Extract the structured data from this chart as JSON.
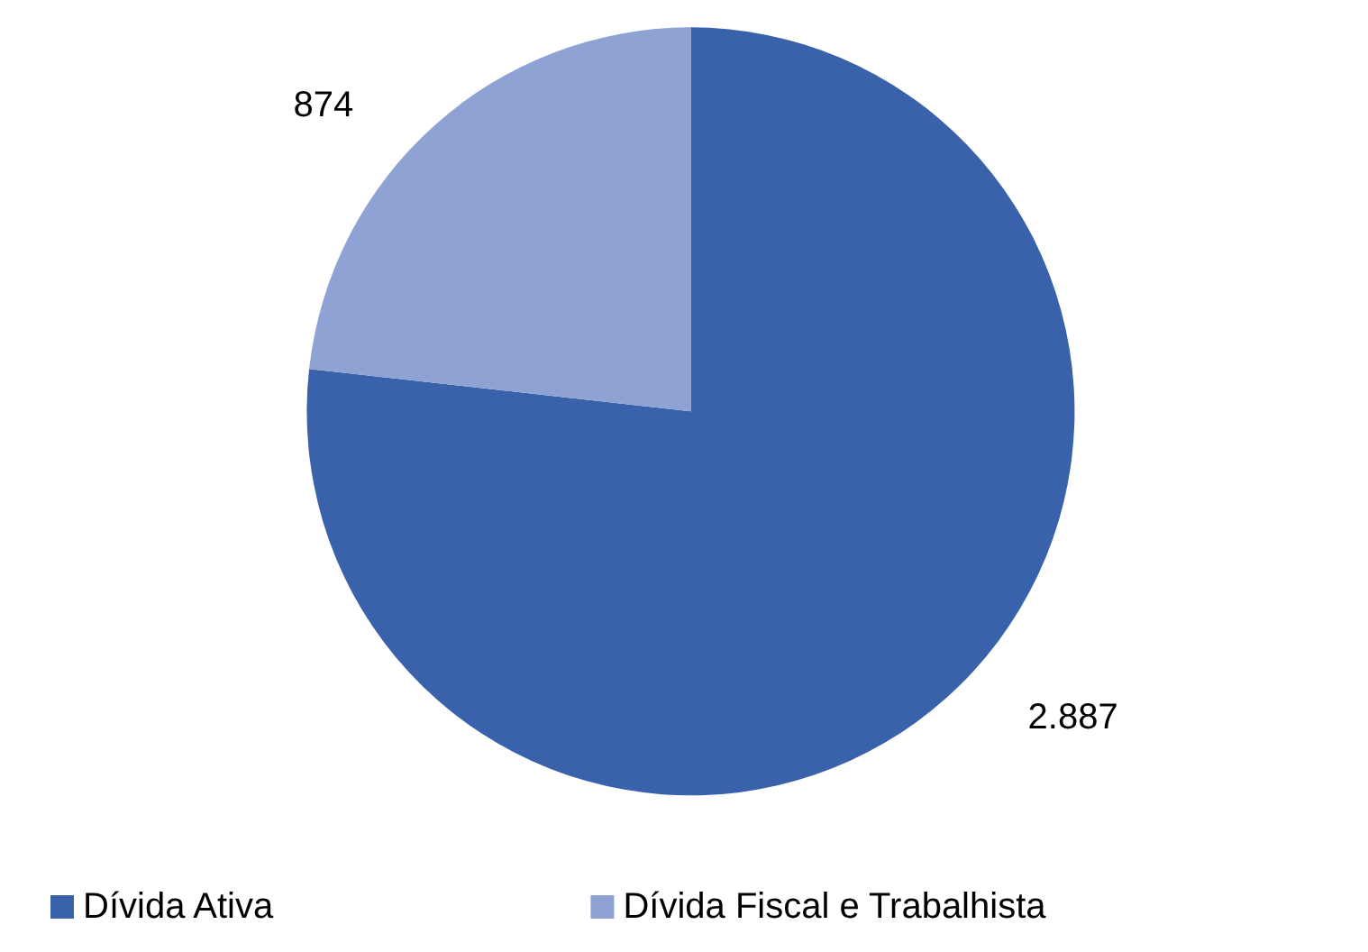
{
  "chart_data": {
    "type": "pie",
    "categories": [
      "Dívida Ativa",
      "Dívida Fiscal e Trabalhista"
    ],
    "values": [
      2887,
      874
    ],
    "colors": [
      "#3a62ab",
      "#8fa2d4"
    ],
    "value_labels": [
      "2.887",
      "874"
    ],
    "legend": "bottom"
  }
}
